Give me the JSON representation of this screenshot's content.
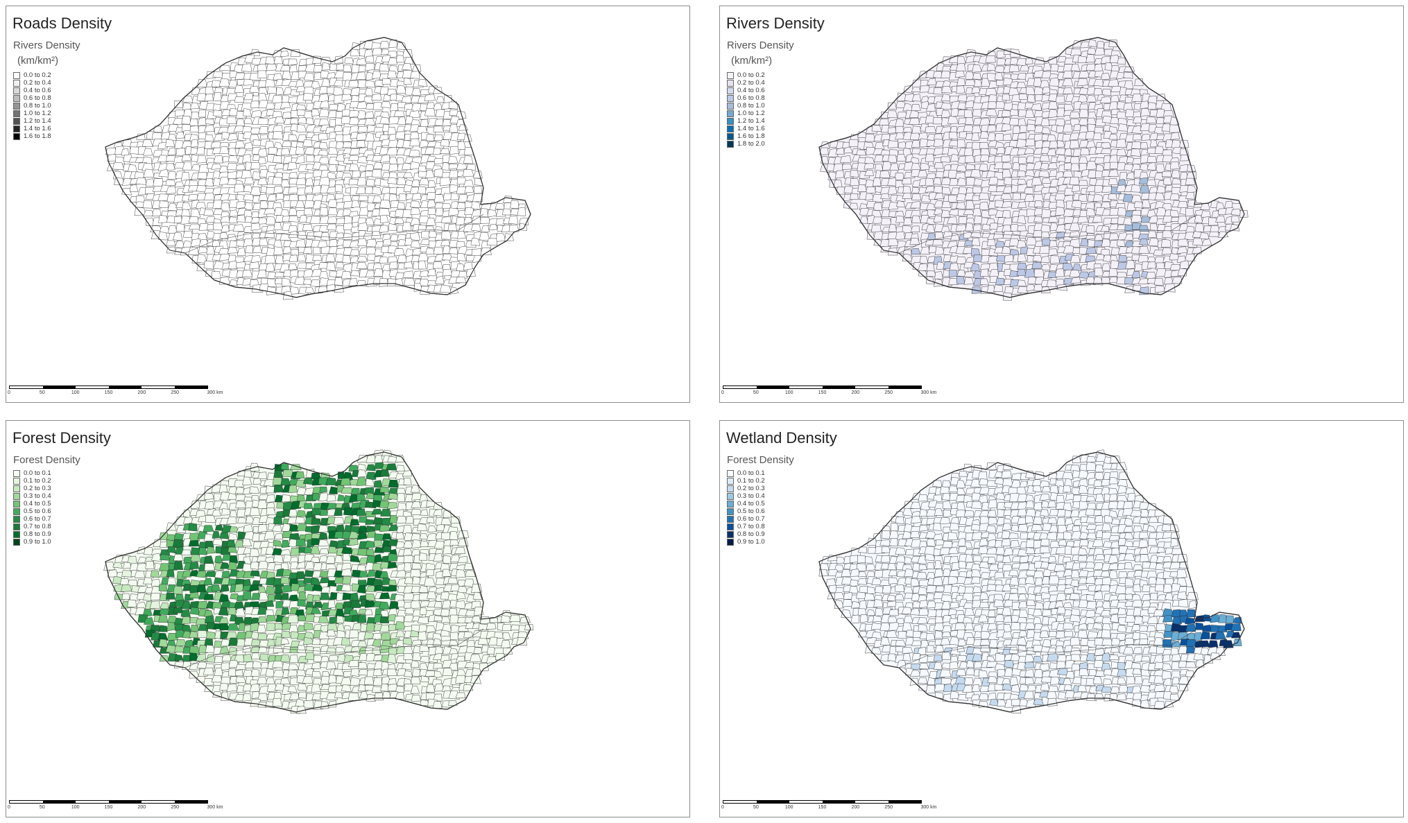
{
  "panels": [
    {
      "title": "Roads Density",
      "legend_title": "Rivers Density",
      "legend_unit": "(km/km²)",
      "legend": [
        {
          "label": "0.0 to 0.2",
          "color": "#ffffff"
        },
        {
          "label": "0.2 to 0.4",
          "color": "#f0f0f0"
        },
        {
          "label": "0.4 to 0.6",
          "color": "#d9d9d9"
        },
        {
          "label": "0.6 to 0.8",
          "color": "#bdbdbd"
        },
        {
          "label": "0.8 to 1.0",
          "color": "#969696"
        },
        {
          "label": "1.0 to 1.2",
          "color": "#737373"
        },
        {
          "label": "1.2 to 1.4",
          "color": "#525252"
        },
        {
          "label": "1.4 to 1.6",
          "color": "#252525"
        },
        {
          "label": "1.6 to 1.8",
          "color": "#000000"
        }
      ],
      "hot_spots": [],
      "base_fill": "#ffffff"
    },
    {
      "title": "Rivers Density",
      "legend_title": "Rivers Density",
      "legend_unit": "(km/km²)",
      "legend": [
        {
          "label": "0.0 to 0.2",
          "color": "#f7f4f9"
        },
        {
          "label": "0.2 to 0.4",
          "color": "#e7e1ef"
        },
        {
          "label": "0.4 to 0.6",
          "color": "#d4d9ee"
        },
        {
          "label": "0.6 to 0.8",
          "color": "#bcc8e6"
        },
        {
          "label": "0.8 to 1.0",
          "color": "#a6bddb"
        },
        {
          "label": "1.0 to 1.2",
          "color": "#74a9cf"
        },
        {
          "label": "1.2 to 1.4",
          "color": "#3690c0"
        },
        {
          "label": "1.4 to 1.6",
          "color": "#0570b0"
        },
        {
          "label": "1.6 to 1.8",
          "color": "#045a8d"
        },
        {
          "label": "1.8 to 2.0",
          "color": "#023858"
        }
      ],
      "base_fill": "#f4f1f8",
      "hot_spots": [
        {
          "color": "#a6bddb",
          "region": "se-danube"
        },
        {
          "color": "#bcc8e6",
          "region": "south"
        }
      ]
    },
    {
      "title": "Forest Density",
      "legend_title": "Forest Density",
      "legend_unit": "",
      "legend": [
        {
          "label": "0.0 to 0.1",
          "color": "#f7fcf5"
        },
        {
          "label": "0.1 to 0.2",
          "color": "#e5f5e0"
        },
        {
          "label": "0.2 to 0.3",
          "color": "#c7e9c0"
        },
        {
          "label": "0.3 to 0.4",
          "color": "#a1d99b"
        },
        {
          "label": "0.4 to 0.5",
          "color": "#74c476"
        },
        {
          "label": "0.5 to 0.6",
          "color": "#41ab5d"
        },
        {
          "label": "0.6 to 0.7",
          "color": "#238b45"
        },
        {
          "label": "0.7 to 0.8",
          "color": "#1a7a3a"
        },
        {
          "label": "0.8 to 0.9",
          "color": "#006d2c"
        },
        {
          "label": "0.9 to 1.0",
          "color": "#00441b"
        }
      ],
      "base_fill": "#f4fbf1",
      "hot_spots": [
        {
          "color": "#41ab5d",
          "region": "carpathians"
        },
        {
          "color": "#c7e9c0",
          "region": "subcarpathian"
        }
      ]
    },
    {
      "title": "Wetland Density",
      "legend_title": "Forest Density",
      "legend_unit": "",
      "legend": [
        {
          "label": "0.0 to 0.1",
          "color": "#f7fbff"
        },
        {
          "label": "0.1 to 0.2",
          "color": "#deebf7"
        },
        {
          "label": "0.2 to 0.3",
          "color": "#c6dbef"
        },
        {
          "label": "0.3 to 0.4",
          "color": "#9ecae1"
        },
        {
          "label": "0.4 to 0.5",
          "color": "#6baed6"
        },
        {
          "label": "0.5 to 0.6",
          "color": "#4292c6"
        },
        {
          "label": "0.6 to 0.7",
          "color": "#2171b5"
        },
        {
          "label": "0.7 to 0.8",
          "color": "#08519c"
        },
        {
          "label": "0.8 to 0.9",
          "color": "#08306b"
        },
        {
          "label": "0.9 to 1.0",
          "color": "#041d4a"
        }
      ],
      "base_fill": "#f6f9fd",
      "hot_spots": [
        {
          "color": "#08519c",
          "region": "delta"
        },
        {
          "color": "#c6dbef",
          "region": "south"
        }
      ]
    }
  ],
  "scale_bar": {
    "ticks": [
      "0",
      "50",
      "100",
      "150",
      "200",
      "250",
      "300 km"
    ]
  }
}
